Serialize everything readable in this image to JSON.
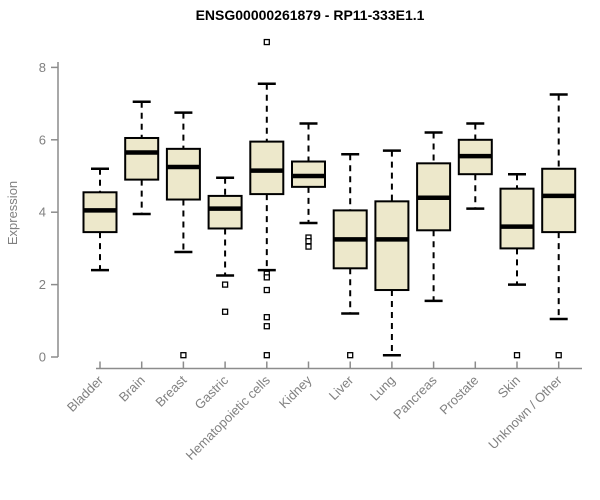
{
  "chart_data": {
    "type": "boxplot",
    "title": "ENSG00000261879 - RP11-333E1.1",
    "ylabel": "Expression",
    "xlabel": "",
    "ylim": [
      0,
      8.8
    ],
    "yticks": [
      0,
      2,
      4,
      6,
      8
    ],
    "grid": false,
    "box_fill": "#EDE8CB",
    "box_stroke": "#000000",
    "axis_color": "#8C8C8C",
    "label_color": "#808080",
    "categories": [
      "Bladder",
      "Brain",
      "Breast",
      "Gastric",
      "Hematopoietic cells",
      "Kidney",
      "Liver",
      "Lung",
      "Pancreas",
      "Prostate",
      "Skin",
      "Unknown / Other"
    ],
    "series": [
      {
        "category": "Bladder",
        "whisker_low": 2.4,
        "q1": 3.45,
        "median": 4.05,
        "q3": 4.55,
        "whisker_high": 5.2,
        "outliers": []
      },
      {
        "category": "Brain",
        "whisker_low": 3.95,
        "q1": 4.9,
        "median": 5.65,
        "q3": 6.05,
        "whisker_high": 7.05,
        "outliers": []
      },
      {
        "category": "Breast",
        "whisker_low": 2.9,
        "q1": 4.35,
        "median": 5.25,
        "q3": 5.75,
        "whisker_high": 6.75,
        "outliers": [
          0.05
        ]
      },
      {
        "category": "Gastric",
        "whisker_low": 2.25,
        "q1": 3.55,
        "median": 4.1,
        "q3": 4.45,
        "whisker_high": 4.95,
        "outliers": [
          2.0,
          1.25
        ]
      },
      {
        "category": "Hematopoietic cells",
        "whisker_low": 2.4,
        "q1": 4.5,
        "median": 5.15,
        "q3": 5.95,
        "whisker_high": 7.55,
        "outliers": [
          8.7,
          2.3,
          2.2,
          1.85,
          1.1,
          0.85,
          0.05
        ]
      },
      {
        "category": "Kidney",
        "whisker_low": 3.7,
        "q1": 4.7,
        "median": 5.0,
        "q3": 5.4,
        "whisker_high": 6.45,
        "outliers": [
          3.3,
          3.2,
          3.05
        ]
      },
      {
        "category": "Liver",
        "whisker_low": 1.2,
        "q1": 2.45,
        "median": 3.25,
        "q3": 4.05,
        "whisker_high": 5.6,
        "outliers": [
          0.05
        ]
      },
      {
        "category": "Lung",
        "whisker_low": 0.05,
        "q1": 1.85,
        "median": 3.25,
        "q3": 4.3,
        "whisker_high": 5.7,
        "outliers": []
      },
      {
        "category": "Pancreas",
        "whisker_low": 1.55,
        "q1": 3.5,
        "median": 4.4,
        "q3": 5.35,
        "whisker_high": 6.2,
        "outliers": []
      },
      {
        "category": "Prostate",
        "whisker_low": 4.1,
        "q1": 5.05,
        "median": 5.55,
        "q3": 6.0,
        "whisker_high": 6.45,
        "outliers": []
      },
      {
        "category": "Skin",
        "whisker_low": 2.0,
        "q1": 3.0,
        "median": 3.6,
        "q3": 4.65,
        "whisker_high": 5.05,
        "outliers": [
          0.05
        ]
      },
      {
        "category": "Unknown / Other",
        "whisker_low": 1.05,
        "q1": 3.45,
        "median": 4.45,
        "q3": 5.2,
        "whisker_high": 7.25,
        "outliers": [
          0.05
        ]
      }
    ]
  }
}
